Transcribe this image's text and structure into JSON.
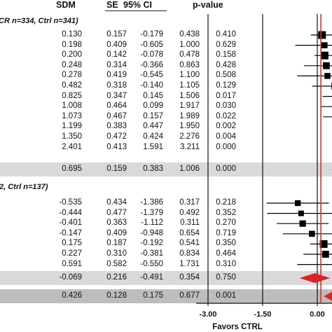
{
  "headers": {
    "sdm": "SDM",
    "se": "SE",
    "ci": "95% CI",
    "p": "p-value"
  },
  "chart_data": {
    "type": "forest",
    "groups": [
      {
        "label": "CR n=334, Ctrl n=341)",
        "studies": [
          {
            "sdm": "0.130",
            "se": "0.157",
            "lo": "-0.179",
            "hi": "0.438",
            "p": "0.410"
          },
          {
            "sdm": "0.198",
            "se": "0.409",
            "lo": "-0.605",
            "hi": "1.000",
            "p": "0.629"
          },
          {
            "sdm": "0.200",
            "se": "0.142",
            "lo": "-0.078",
            "hi": "0.478",
            "p": "0.158"
          },
          {
            "sdm": "0.248",
            "se": "0.314",
            "lo": "-0.366",
            "hi": "0.863",
            "p": "0.428"
          },
          {
            "sdm": "0.278",
            "se": "0.419",
            "lo": "-0.545",
            "hi": "1.100",
            "p": "0.508"
          },
          {
            "sdm": "0.482",
            "se": "0.318",
            "lo": "-0.140",
            "hi": "1.105",
            "p": "0.129"
          },
          {
            "sdm": "0.825",
            "se": "0.347",
            "lo": "0.145",
            "hi": "1.506",
            "p": "0.017"
          },
          {
            "sdm": "1.008",
            "se": "0.464",
            "lo": "0.099",
            "hi": "1.917",
            "p": "0.030"
          },
          {
            "sdm": "1.073",
            "se": "0.467",
            "lo": "0.157",
            "hi": "1.989",
            "p": "0.022"
          },
          {
            "sdm": "1.199",
            "se": "0.383",
            "lo": "0.447",
            "hi": "1.950",
            "p": "0.002"
          },
          {
            "sdm": "1.350",
            "se": "0.472",
            "lo": "0.424",
            "hi": "2.276",
            "p": "0.004"
          },
          {
            "sdm": "2.401",
            "se": "0.413",
            "lo": "1.591",
            "hi": "3.211",
            "p": "0.000"
          }
        ],
        "summary": {
          "sdm": "0.695",
          "se": "0.159",
          "lo": "0.383",
          "hi": "1.006",
          "p": "0.000"
        }
      },
      {
        "label": "2, Ctrl n=137)",
        "studies": [
          {
            "sdm": "-0.535",
            "se": "0.434",
            "lo": "-1.386",
            "hi": "0.317",
            "p": "0.218"
          },
          {
            "sdm": "-0.444",
            "se": "0.477",
            "lo": "-1.379",
            "hi": "0.492",
            "p": "0.352"
          },
          {
            "sdm": "-0.401",
            "se": "0.363",
            "lo": "-1.112",
            "hi": "0.311",
            "p": "0.270"
          },
          {
            "sdm": "-0.147",
            "se": "0.409",
            "lo": "-0.948",
            "hi": "0.654",
            "p": "0.719"
          },
          {
            "sdm": "0.175",
            "se": "0.187",
            "lo": "-0.192",
            "hi": "0.541",
            "p": "0.350"
          },
          {
            "sdm": "0.227",
            "se": "0.310",
            "lo": "-0.381",
            "hi": "0.834",
            "p": "0.464"
          },
          {
            "sdm": "0.591",
            "se": "0.582",
            "lo": "-0.550",
            "hi": "1.731",
            "p": "0.310"
          }
        ],
        "summary": {
          "sdm": "-0.069",
          "se": "0.216",
          "lo": "-0.491",
          "hi": "0.354",
          "p": "0.750"
        }
      }
    ],
    "overall": {
      "sdm": "0.426",
      "se": "0.128",
      "lo": "0.175",
      "hi": "0.677",
      "p": "0.001"
    },
    "axis": {
      "ticks": [
        -3.0,
        -1.5,
        0.0
      ],
      "tick_labels": [
        "-3.00",
        "-1.50",
        "0.00"
      ],
      "xlabel": "Favors CTRL"
    },
    "colors": {
      "reference_line": "#c0392b",
      "summary_diamond": "#d62728",
      "markers": "#000000"
    }
  }
}
